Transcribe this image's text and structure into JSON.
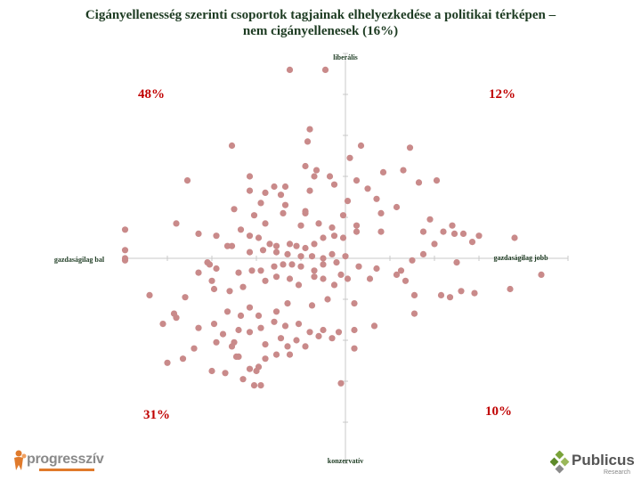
{
  "title_line1": "Cigányellenesség szerinti csoportok tagjainak elhelyezkedése a politikai térképen –",
  "title_line2": "nem cigányellenesek (16%)",
  "logos": {
    "left": "progresszív",
    "right": "Publicus",
    "right_sub": "Research"
  },
  "colors": {
    "point": "#c98a8a",
    "quadrant_label": "#c00000",
    "title": "#1d3b22",
    "axis": "#c8c8c8"
  },
  "chart_data": {
    "type": "scatter",
    "title": "Cigányellenesség szerinti csoportok tagjainak elhelyezkedése a politikai térképen – nem cigányellenesek (16%)",
    "xlabel_left": "gazdaságilag bal",
    "xlabel_right": "gazdaságilag jobb",
    "ylabel_top": "liberális",
    "ylabel_bottom": "konzervatív",
    "xlim": [
      -1,
      1
    ],
    "ylim": [
      -1,
      1
    ],
    "quadrant_labels": {
      "top_left": "48%",
      "top_right": "12%",
      "bottom_left": "31%",
      "bottom_right": "10%"
    },
    "points": [
      [
        -0.25,
        0.92
      ],
      [
        -0.09,
        0.92
      ],
      [
        -0.51,
        0.55
      ],
      [
        -0.17,
        0.57
      ],
      [
        -0.16,
        0.63
      ],
      [
        0.07,
        0.55
      ],
      [
        0.29,
        0.54
      ],
      [
        -0.71,
        0.38
      ],
      [
        -0.43,
        0.4
      ],
      [
        0.02,
        0.49
      ],
      [
        -0.07,
        0.4
      ],
      [
        -0.14,
        0.4
      ],
      [
        -0.18,
        0.45
      ],
      [
        -0.13,
        0.43
      ],
      [
        -0.38,
        0.27
      ],
      [
        -0.27,
        0.35
      ],
      [
        -0.32,
        0.35
      ],
      [
        -0.29,
        0.31
      ],
      [
        -0.36,
        0.32
      ],
      [
        -0.43,
        0.33
      ],
      [
        -0.5,
        0.24
      ],
      [
        -0.16,
        0.33
      ],
      [
        -0.05,
        0.36
      ],
      [
        -0.18,
        0.23
      ],
      [
        0.05,
        0.38
      ],
      [
        0.1,
        0.34
      ],
      [
        -0.76,
        0.17
      ],
      [
        -0.27,
        0.26
      ],
      [
        -0.18,
        0.22
      ],
      [
        0.14,
        0.29
      ],
      [
        0.01,
        0.28
      ],
      [
        -0.58,
        0.11
      ],
      [
        -0.47,
        0.14
      ],
      [
        -0.41,
        0.21
      ],
      [
        -0.36,
        0.17
      ],
      [
        -0.28,
        0.22
      ],
      [
        -0.2,
        0.16
      ],
      [
        -0.12,
        0.17
      ],
      [
        -0.06,
        0.15
      ],
      [
        0.05,
        0.16
      ],
      [
        0.23,
        0.25
      ],
      [
        0.16,
        0.22
      ],
      [
        -0.99,
        0.14
      ],
      [
        -0.66,
        0.12
      ],
      [
        -0.53,
        0.06
      ],
      [
        -0.51,
        0.06
      ],
      [
        -0.43,
        0.11
      ],
      [
        -0.39,
        0.1
      ],
      [
        -0.34,
        0.07
      ],
      [
        -0.31,
        0.06
      ],
      [
        -0.25,
        0.07
      ],
      [
        -0.22,
        0.06
      ],
      [
        -0.18,
        0.05
      ],
      [
        -0.14,
        0.07
      ],
      [
        -0.1,
        0.1
      ],
      [
        -0.05,
        0.11
      ],
      [
        -0.01,
        0.1
      ],
      [
        0.05,
        0.13
      ],
      [
        0.16,
        0.13
      ],
      [
        0.44,
        0.13
      ],
      [
        0.38,
        0.19
      ],
      [
        0.35,
        0.13
      ],
      [
        0.49,
        0.12
      ],
      [
        0.6,
        0.11
      ],
      [
        0.57,
        0.08
      ],
      [
        0.53,
        0.12
      ],
      [
        0.76,
        0.1
      ],
      [
        0.4,
        0.07
      ],
      [
        -0.43,
        0.03
      ],
      [
        -0.37,
        0.04
      ],
      [
        -0.31,
        0.03
      ],
      [
        -0.26,
        0.02
      ],
      [
        -0.2,
        0.01
      ],
      [
        -0.15,
        0.01
      ],
      [
        -0.1,
        0.0
      ],
      [
        -0.06,
        0.02
      ],
      [
        0.0,
        0.01
      ],
      [
        -0.99,
        0.04
      ],
      [
        -0.99,
        0.0
      ],
      [
        -0.62,
        -0.02
      ],
      [
        -0.58,
        -0.05
      ],
      [
        -0.48,
        -0.07
      ],
      [
        -0.42,
        -0.06
      ],
      [
        -0.38,
        -0.06
      ],
      [
        -0.32,
        -0.04
      ],
      [
        -0.28,
        -0.03
      ],
      [
        -0.24,
        -0.03
      ],
      [
        -0.2,
        -0.04
      ],
      [
        -0.14,
        -0.06
      ],
      [
        -0.1,
        -0.03
      ],
      [
        -0.04,
        -0.02
      ],
      [
        0.06,
        -0.04
      ],
      [
        0.14,
        -0.05
      ],
      [
        0.25,
        -0.06
      ],
      [
        0.3,
        -0.01
      ],
      [
        0.5,
        -0.02
      ],
      [
        -0.66,
        -0.07
      ],
      [
        -0.61,
        -0.03
      ],
      [
        -0.6,
        -0.11
      ],
      [
        -0.59,
        -0.15
      ],
      [
        -0.52,
        -0.16
      ],
      [
        -0.46,
        -0.14
      ],
      [
        -0.36,
        -0.11
      ],
      [
        -0.31,
        -0.09
      ],
      [
        -0.25,
        -0.1
      ],
      [
        -0.21,
        -0.13
      ],
      [
        -0.14,
        -0.09
      ],
      [
        -0.1,
        -0.1
      ],
      [
        -0.05,
        -0.13
      ],
      [
        0.01,
        -0.1
      ],
      [
        0.11,
        -0.1
      ],
      [
        0.23,
        -0.08
      ],
      [
        0.27,
        -0.11
      ],
      [
        0.31,
        -0.18
      ],
      [
        0.43,
        -0.18
      ],
      [
        0.47,
        -0.19
      ],
      [
        0.52,
        -0.16
      ],
      [
        0.58,
        -0.17
      ],
      [
        0.74,
        -0.15
      ],
      [
        0.88,
        -0.08
      ],
      [
        -0.88,
        -0.18
      ],
      [
        -0.72,
        -0.19
      ],
      [
        -0.43,
        -0.24
      ],
      [
        -0.53,
        -0.26
      ],
      [
        -0.59,
        -0.32
      ],
      [
        -0.47,
        -0.28
      ],
      [
        -0.39,
        -0.28
      ],
      [
        -0.31,
        -0.26
      ],
      [
        -0.26,
        -0.22
      ],
      [
        -0.15,
        -0.23
      ],
      [
        -0.08,
        -0.2
      ],
      [
        0.04,
        -0.22
      ],
      [
        0.31,
        -0.27
      ],
      [
        -0.76,
        -0.29
      ],
      [
        -0.66,
        -0.34
      ],
      [
        -0.55,
        -0.37
      ],
      [
        -0.48,
        -0.35
      ],
      [
        -0.43,
        -0.36
      ],
      [
        -0.38,
        -0.34
      ],
      [
        -0.32,
        -0.31
      ],
      [
        -0.27,
        -0.33
      ],
      [
        -0.21,
        -0.32
      ],
      [
        -0.16,
        -0.36
      ],
      [
        -0.1,
        -0.35
      ],
      [
        -0.03,
        -0.36
      ],
      [
        0.04,
        -0.35
      ],
      [
        -0.51,
        -0.43
      ],
      [
        -0.49,
        -0.48
      ],
      [
        -0.43,
        -0.54
      ],
      [
        -0.39,
        -0.53
      ],
      [
        -0.29,
        -0.39
      ],
      [
        -0.36,
        -0.42
      ],
      [
        -0.26,
        -0.43
      ],
      [
        -0.22,
        -0.4
      ],
      [
        -0.12,
        -0.38
      ],
      [
        -0.06,
        -0.39
      ],
      [
        -0.73,
        -0.49
      ],
      [
        -0.6,
        -0.55
      ],
      [
        -0.48,
        -0.48
      ],
      [
        -0.4,
        -0.55
      ],
      [
        -0.41,
        -0.62
      ],
      [
        -0.38,
        -0.62
      ],
      [
        -0.36,
        -0.49
      ],
      [
        -0.31,
        -0.47
      ],
      [
        -0.25,
        -0.47
      ],
      [
        -0.18,
        -0.43
      ],
      [
        -0.5,
        -0.41
      ],
      [
        -0.46,
        -0.59
      ],
      [
        -0.54,
        -0.56
      ],
      [
        -0.58,
        -0.41
      ],
      [
        0.13,
        -0.33
      ],
      [
        0.04,
        -0.44
      ],
      [
        -0.77,
        -0.27
      ],
      [
        -0.82,
        -0.32
      ],
      [
        -0.68,
        -0.44
      ],
      [
        -0.8,
        -0.51
      ],
      [
        -0.02,
        -0.61
      ],
      [
        0.17,
        0.42
      ],
      [
        0.26,
        0.43
      ],
      [
        0.33,
        0.37
      ],
      [
        0.41,
        0.38
      ],
      [
        0.48,
        0.16
      ],
      [
        -0.02,
        -0.08
      ],
      [
        -0.01,
        0.21
      ],
      [
        0.35,
        0.02
      ],
      [
        -0.99,
        -0.01
      ]
    ]
  }
}
